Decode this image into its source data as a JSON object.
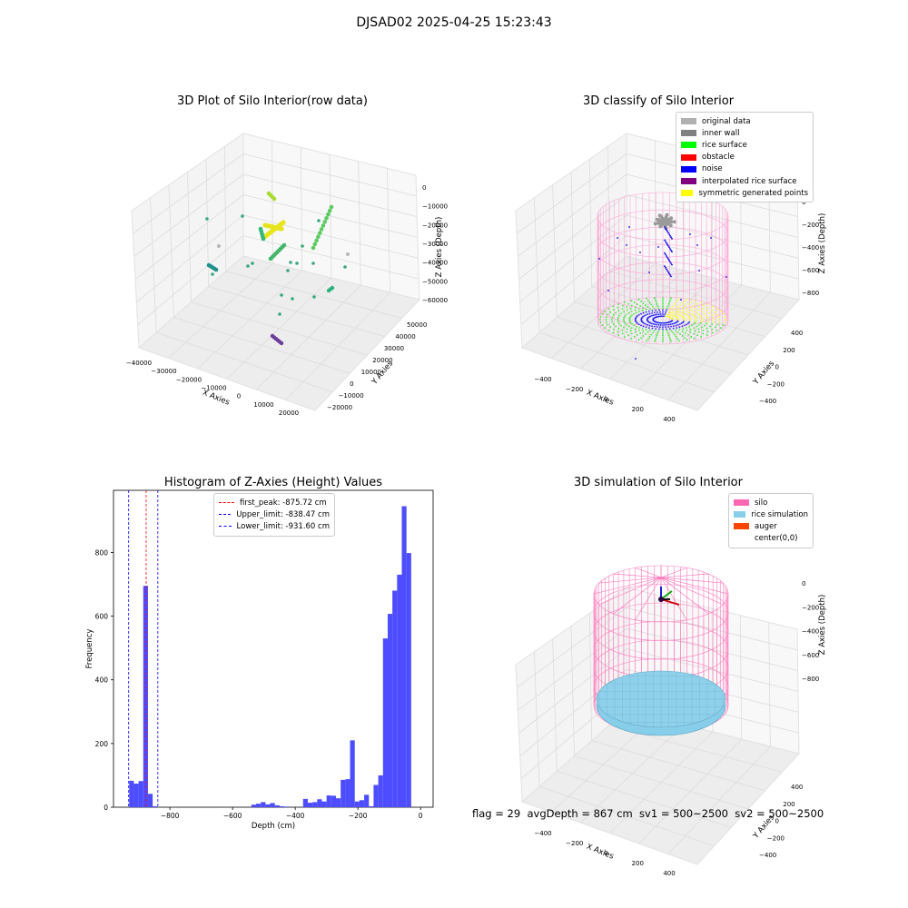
{
  "suptitle": "DJSAD02 2025-04-25 15:23:43",
  "panels": {
    "raw": {
      "title": "3D Plot of Silo Interior(row data)",
      "xlabel": "X Axies",
      "ylabel": "Y Axies",
      "zlabel": "Z Axies (Depth)",
      "xticks": [
        "−40000",
        "−30000",
        "−20000",
        "−10000",
        "0",
        "10000",
        "20000"
      ],
      "yticks": [
        "−20000",
        "−10000",
        "0",
        "10000",
        "20000",
        "30000",
        "40000",
        "50000"
      ],
      "zticks": [
        "0",
        "−10000",
        "−20000",
        "−30000",
        "−40000",
        "−50000",
        "−60000"
      ]
    },
    "classify": {
      "title": "3D classify of Silo Interior",
      "xlabel": "X Axies",
      "ylabel": "Y Axies",
      "zlabel": "Z Axies (Depth)",
      "xticks": [
        "−400",
        "−200",
        "0",
        "200",
        "400"
      ],
      "yticks": [
        "−400",
        "−200",
        "0",
        "200",
        "400"
      ],
      "zticks": [
        "0",
        "−200",
        "−400",
        "−600",
        "−800"
      ],
      "legend": [
        {
          "label": "original data",
          "color": "#b0b0b0"
        },
        {
          "label": "inner wall",
          "color": "#808080"
        },
        {
          "label": "rice surface",
          "color": "#00ff00"
        },
        {
          "label": "obstacle",
          "color": "#ff0000"
        },
        {
          "label": "noise",
          "color": "#0000ff"
        },
        {
          "label": "interpolated rice surface",
          "color": "#800080"
        },
        {
          "label": "symmetric generated points",
          "color": "#ffff00"
        }
      ]
    },
    "hist": {
      "title": "Histogram of Z-Axies (Height) Values",
      "xlabel": "Depth (cm)",
      "ylabel": "Frequency",
      "legend": [
        {
          "label": "first_peak: -875.72 cm",
          "color": "#ff0000"
        },
        {
          "label": "Upper_limit: -838.47 cm",
          "color": "#0000ff"
        },
        {
          "label": "Lower_limit: -931.60 cm",
          "color": "#0000ff"
        }
      ]
    },
    "sim": {
      "title": "3D simulation of Silo Interior",
      "xlabel": "X Axies",
      "ylabel": "Y Axies",
      "zlabel": "Z Axies (Depth)",
      "xticks": [
        "−400",
        "−200",
        "0",
        "200",
        "400"
      ],
      "yticks": [
        "−400",
        "−200",
        "0",
        "200",
        "400"
      ],
      "zticks": [
        "0",
        "−200",
        "−400",
        "−600",
        "−800"
      ],
      "legend": [
        {
          "label": "silo",
          "color": "#ff69b4"
        },
        {
          "label": "rice simulation",
          "color": "#87ceeb"
        },
        {
          "label": "auger",
          "color": "#ff4500"
        },
        {
          "label": "center(0,0)",
          "color": "#ffffff"
        }
      ]
    }
  },
  "footer": "flag = 29  avgDepth = 867 cm  sv1 = 500~2500  sv2 = 500~2500",
  "chart_data": [
    {
      "type": "scatter",
      "title": "3D Plot of Silo Interior(row data)",
      "xlabel": "X Axies",
      "ylabel": "Y Axies",
      "zlabel": "Z Axies (Depth)",
      "xlim": [
        -40000,
        25000
      ],
      "ylim": [
        -20000,
        55000
      ],
      "zlim": [
        -62000,
        2000
      ]
    },
    {
      "type": "scatter",
      "title": "3D classify of Silo Interior",
      "xlabel": "X Axies",
      "ylabel": "Y Axies",
      "zlabel": "Z Axies (Depth)",
      "xlim": [
        -500,
        500
      ],
      "ylim": [
        -500,
        500
      ],
      "zlim": [
        -900,
        50
      ],
      "series": [
        {
          "name": "original data"
        },
        {
          "name": "inner wall"
        },
        {
          "name": "rice surface"
        },
        {
          "name": "obstacle"
        },
        {
          "name": "noise"
        },
        {
          "name": "interpolated rice surface"
        },
        {
          "name": "symmetric generated points"
        }
      ]
    },
    {
      "type": "bar",
      "title": "Histogram of Z-Axies (Height) Values",
      "xlabel": "Depth (cm)",
      "ylabel": "Frequency",
      "xlim": [
        -980,
        40
      ],
      "ylim": [
        0,
        995
      ],
      "xticks": [
        -800,
        -600,
        -400,
        -200,
        0
      ],
      "yticks": [
        0,
        200,
        400,
        600,
        800
      ],
      "bin_width": 15,
      "bins_start": [
        -930,
        -915,
        -900,
        -885,
        -870,
        -855,
        -540,
        -525,
        -510,
        -495,
        -480,
        -465,
        -450,
        -435,
        -375,
        -360,
        -345,
        -330,
        -315,
        -300,
        -285,
        -270,
        -255,
        -240,
        -225,
        -210,
        -195,
        -180,
        -165,
        -150,
        -135,
        -120,
        -105,
        -90,
        -75,
        -60,
        -45,
        -30,
        -15
      ],
      "values": [
        83,
        74,
        82,
        695,
        42,
        3,
        8,
        11,
        16,
        9,
        13,
        6,
        3,
        2,
        26,
        14,
        16,
        25,
        18,
        37,
        36,
        28,
        86,
        88,
        210,
        18,
        22,
        39,
        3,
        70,
        100,
        530,
        607,
        680,
        730,
        945,
        798,
        0,
        0
      ],
      "lines": [
        {
          "name": "first_peak: -875.72 cm",
          "x": -875.72,
          "color": "#ff0000"
        },
        {
          "name": "Upper_limit: -838.47 cm",
          "x": -838.47,
          "color": "#0000ff"
        },
        {
          "name": "Lower_limit: -931.60 cm",
          "x": -931.6,
          "color": "#0000ff"
        }
      ]
    },
    {
      "type": "scatter",
      "title": "3D simulation of Silo Interior",
      "xlabel": "X Axies",
      "ylabel": "Y Axies",
      "zlabel": "Z Axies (Depth)",
      "xlim": [
        -500,
        500
      ],
      "ylim": [
        -500,
        500
      ],
      "zlim": [
        -900,
        50
      ],
      "series": [
        {
          "name": "silo"
        },
        {
          "name": "rice simulation"
        },
        {
          "name": "auger"
        },
        {
          "name": "center(0,0)"
        }
      ]
    }
  ]
}
